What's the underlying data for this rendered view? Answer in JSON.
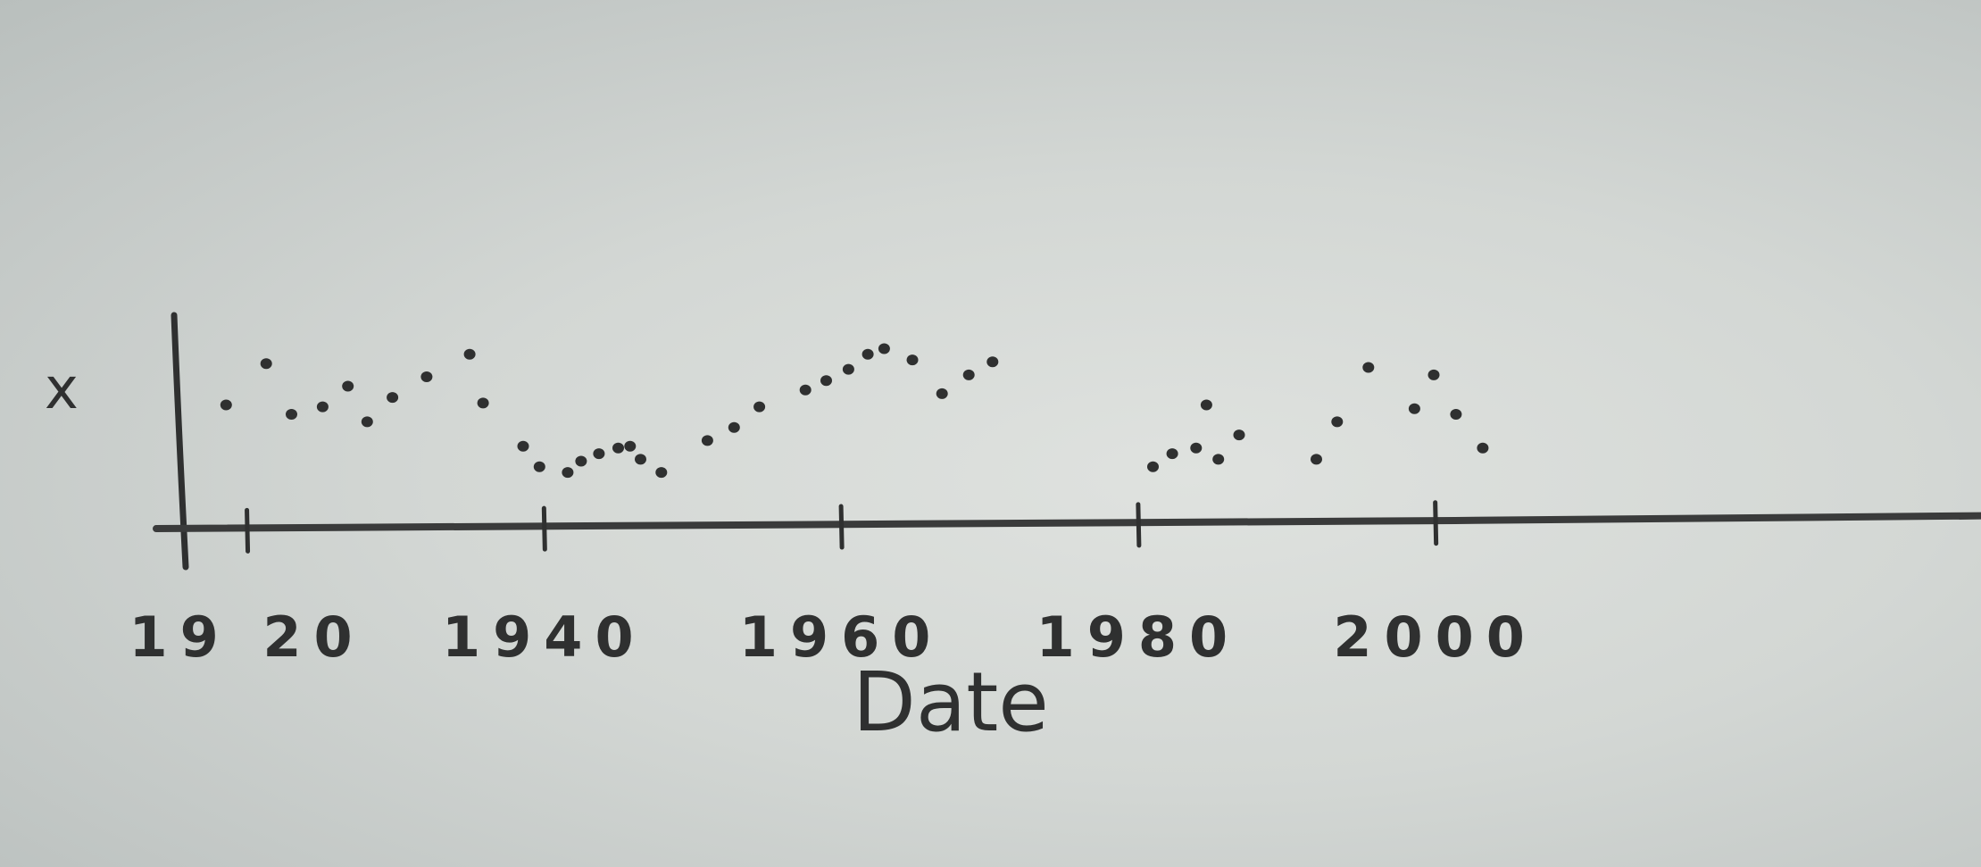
{
  "chart_data": {
    "type": "scatter",
    "title": "",
    "xlabel": "Date",
    "ylabel": "x",
    "xlim": [
      1916,
      2035
    ],
    "ylim": [
      0,
      10
    ],
    "x_ticks": [
      1920,
      1940,
      1960,
      1980,
      2000
    ],
    "x_tick_labels": [
      "19 20",
      "1940",
      "1960",
      "1980",
      "2000"
    ],
    "grid": false,
    "legend": "none",
    "y_tick_labels": [],
    "series": [
      {
        "points": [
          [
            1918.6,
            6.5
          ],
          [
            1921.3,
            8.7
          ],
          [
            1923.0,
            6.0
          ],
          [
            1925.1,
            6.4
          ],
          [
            1926.8,
            7.5
          ],
          [
            1928.1,
            5.6
          ],
          [
            1929.8,
            6.9
          ],
          [
            1932.1,
            8.0
          ],
          [
            1935.0,
            9.2
          ],
          [
            1935.9,
            6.6
          ],
          [
            1938.6,
            4.3
          ],
          [
            1939.7,
            3.2
          ],
          [
            1941.6,
            2.9
          ],
          [
            1942.5,
            3.5
          ],
          [
            1943.7,
            3.9
          ],
          [
            1945.0,
            4.2
          ],
          [
            1945.8,
            4.3
          ],
          [
            1946.5,
            3.6
          ],
          [
            1947.9,
            2.9
          ],
          [
            1951.0,
            4.6
          ],
          [
            1952.8,
            5.3
          ],
          [
            1954.5,
            6.4
          ],
          [
            1957.6,
            7.3
          ],
          [
            1959.0,
            7.8
          ],
          [
            1960.5,
            8.4
          ],
          [
            1961.8,
            9.2
          ],
          [
            1962.9,
            9.5
          ],
          [
            1964.8,
            8.9
          ],
          [
            1966.8,
            7.1
          ],
          [
            1968.6,
            8.1
          ],
          [
            1970.2,
            8.8
          ],
          [
            1981.0,
            3.2
          ],
          [
            1982.3,
            3.9
          ],
          [
            1983.9,
            4.2
          ],
          [
            1984.6,
            6.5
          ],
          [
            1985.4,
            3.6
          ],
          [
            1986.8,
            4.9
          ],
          [
            1992.0,
            3.6
          ],
          [
            1993.4,
            5.6
          ],
          [
            1995.5,
            8.5
          ],
          [
            1998.6,
            6.3
          ],
          [
            1999.9,
            8.1
          ],
          [
            2001.4,
            6.0
          ],
          [
            2003.2,
            4.2
          ]
        ]
      }
    ],
    "colors": {
      "ink": "#2f3030",
      "paper": "#d6d9d6"
    }
  }
}
